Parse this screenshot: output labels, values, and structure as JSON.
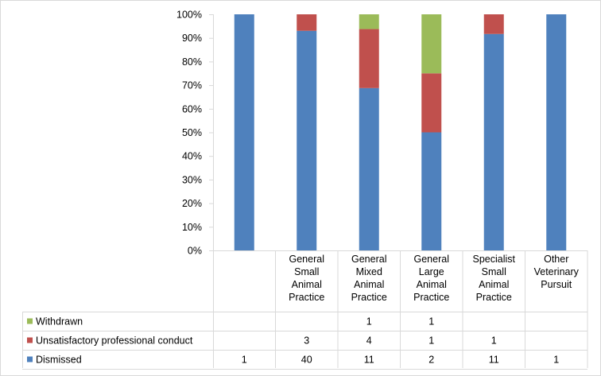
{
  "chart_data": {
    "type": "bar",
    "stacked": "percent",
    "categories": [
      [],
      [
        "General",
        "Small",
        "Animal",
        "Practice"
      ],
      [
        "General",
        "Mixed",
        "Animal",
        "Practice"
      ],
      [
        "General",
        "Large",
        "Animal",
        "Practice"
      ],
      [
        "Specialist",
        "Small",
        "Animal",
        "Practice"
      ],
      [
        "Other",
        "Veterinary",
        "Pursuit"
      ]
    ],
    "series": [
      {
        "name": "Dismissed",
        "color": "#4f81bd",
        "values": [
          1,
          40,
          11,
          2,
          11,
          1
        ]
      },
      {
        "name": "Unsatisfactory professional conduct",
        "color": "#c0504d",
        "values": [
          null,
          3,
          4,
          1,
          1,
          null
        ]
      },
      {
        "name": "Withdrawn",
        "color": "#9bbb59",
        "values": [
          null,
          null,
          1,
          1,
          null,
          null
        ]
      }
    ],
    "y_ticks": [
      "0%",
      "10%",
      "20%",
      "30%",
      "40%",
      "50%",
      "60%",
      "70%",
      "80%",
      "90%",
      "100%"
    ],
    "ylim": [
      0,
      100
    ],
    "grid": false,
    "legend": "data table",
    "title": "",
    "xlabel": "",
    "ylabel": ""
  }
}
